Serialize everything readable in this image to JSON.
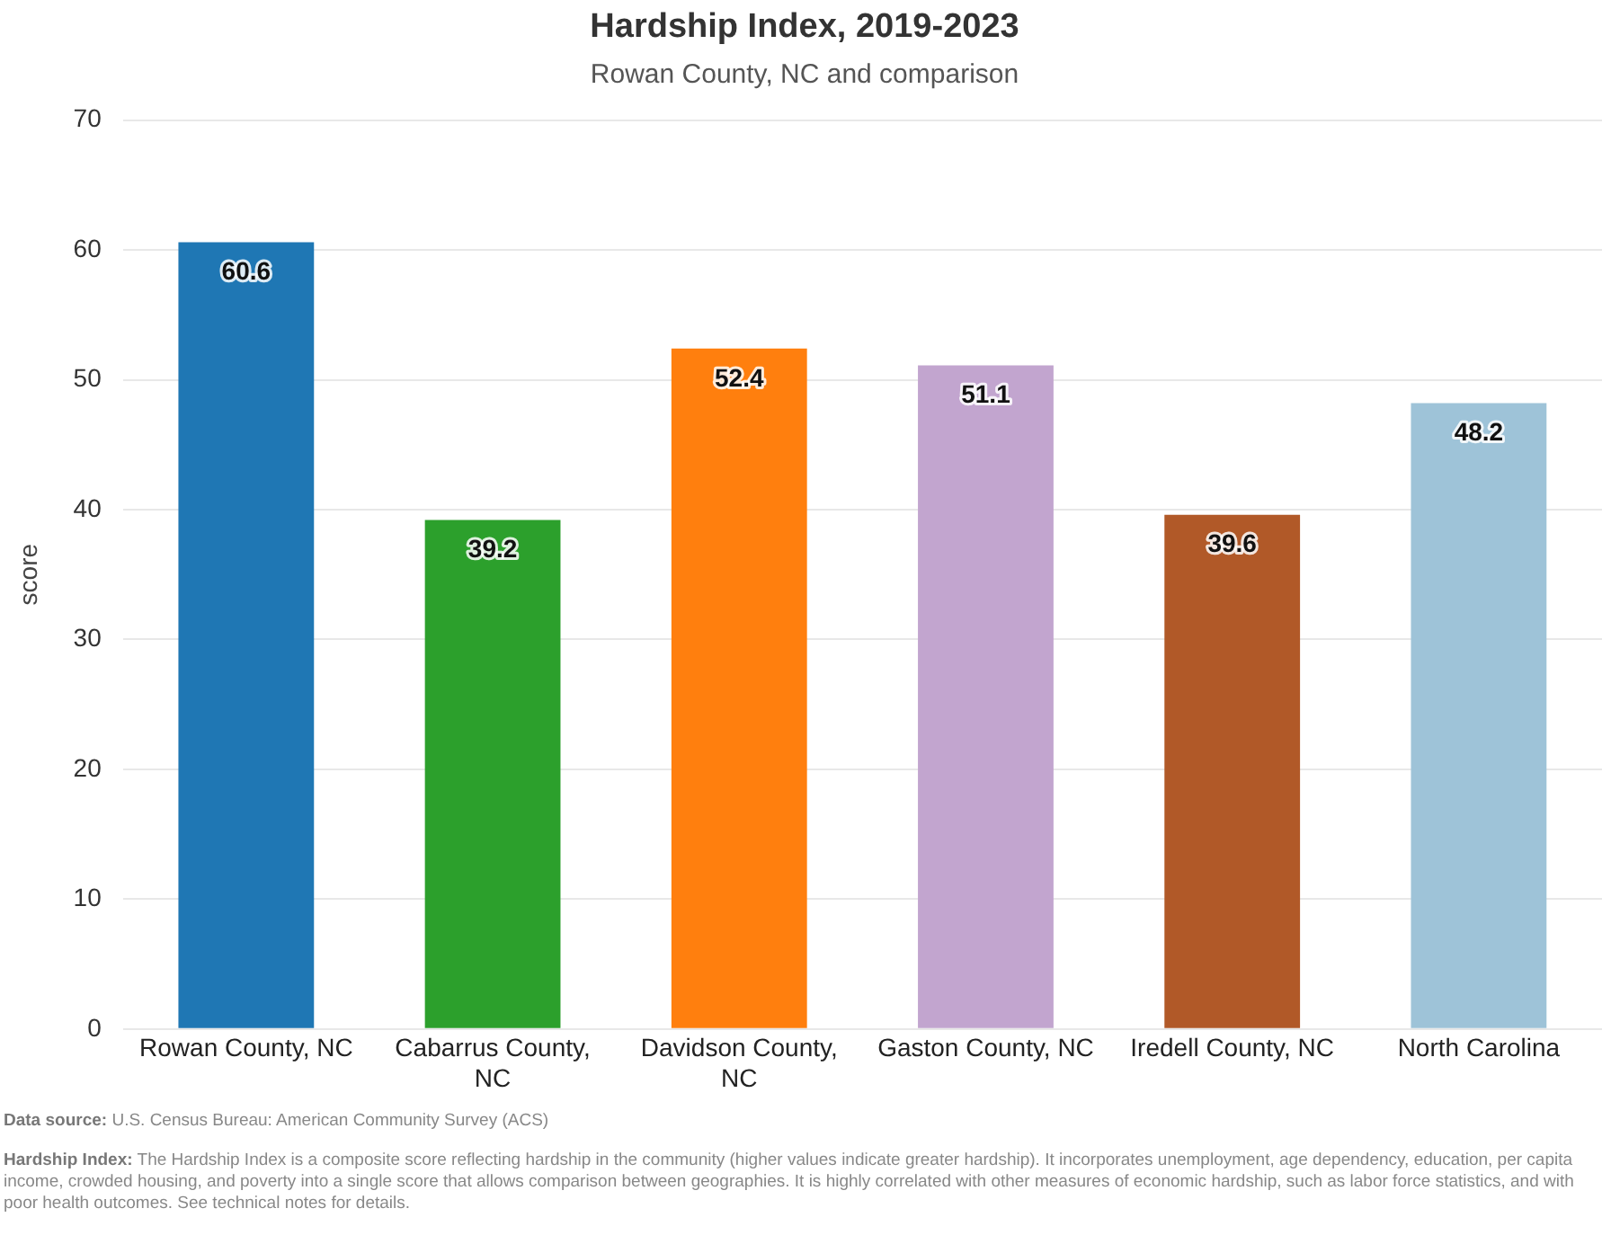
{
  "chart_data": {
    "type": "bar",
    "title": "Hardship Index, 2019-2023",
    "subtitle": "Rowan County, NC and comparison",
    "ylabel": "score",
    "categories": [
      "Rowan County, NC",
      "Cabarrus County, NC",
      "Davidson County, NC",
      "Gaston County, NC",
      "Iredell County, NC",
      "North Carolina"
    ],
    "values": [
      60.6,
      39.2,
      52.4,
      51.1,
      39.6,
      48.2
    ],
    "colors": [
      "#1f77b4",
      "#2ca02c",
      "#ff7f0e",
      "#c2a5cf",
      "#b15928",
      "#9ec3d8"
    ],
    "ylim": [
      0,
      70
    ],
    "yticks": [
      0,
      10,
      20,
      30,
      40,
      50,
      60,
      70
    ],
    "grid": "y",
    "legend": false,
    "data_labels": true,
    "annotations": [
      "Data source: U.S. Census Bureau: American Community Survey (ACS)",
      "Hardship Index: The Hardship Index is a composite score reflecting hardship in the community (higher values indicate greater hardship). It incorporates unemployment, age dependency, education, per capita income, crowded housing, and poverty into a single score that allows comparison between geographies. It is highly correlated with other measures of economic hardship, such as labor force statistics, and with poor health outcomes. See technical notes for details."
    ]
  }
}
